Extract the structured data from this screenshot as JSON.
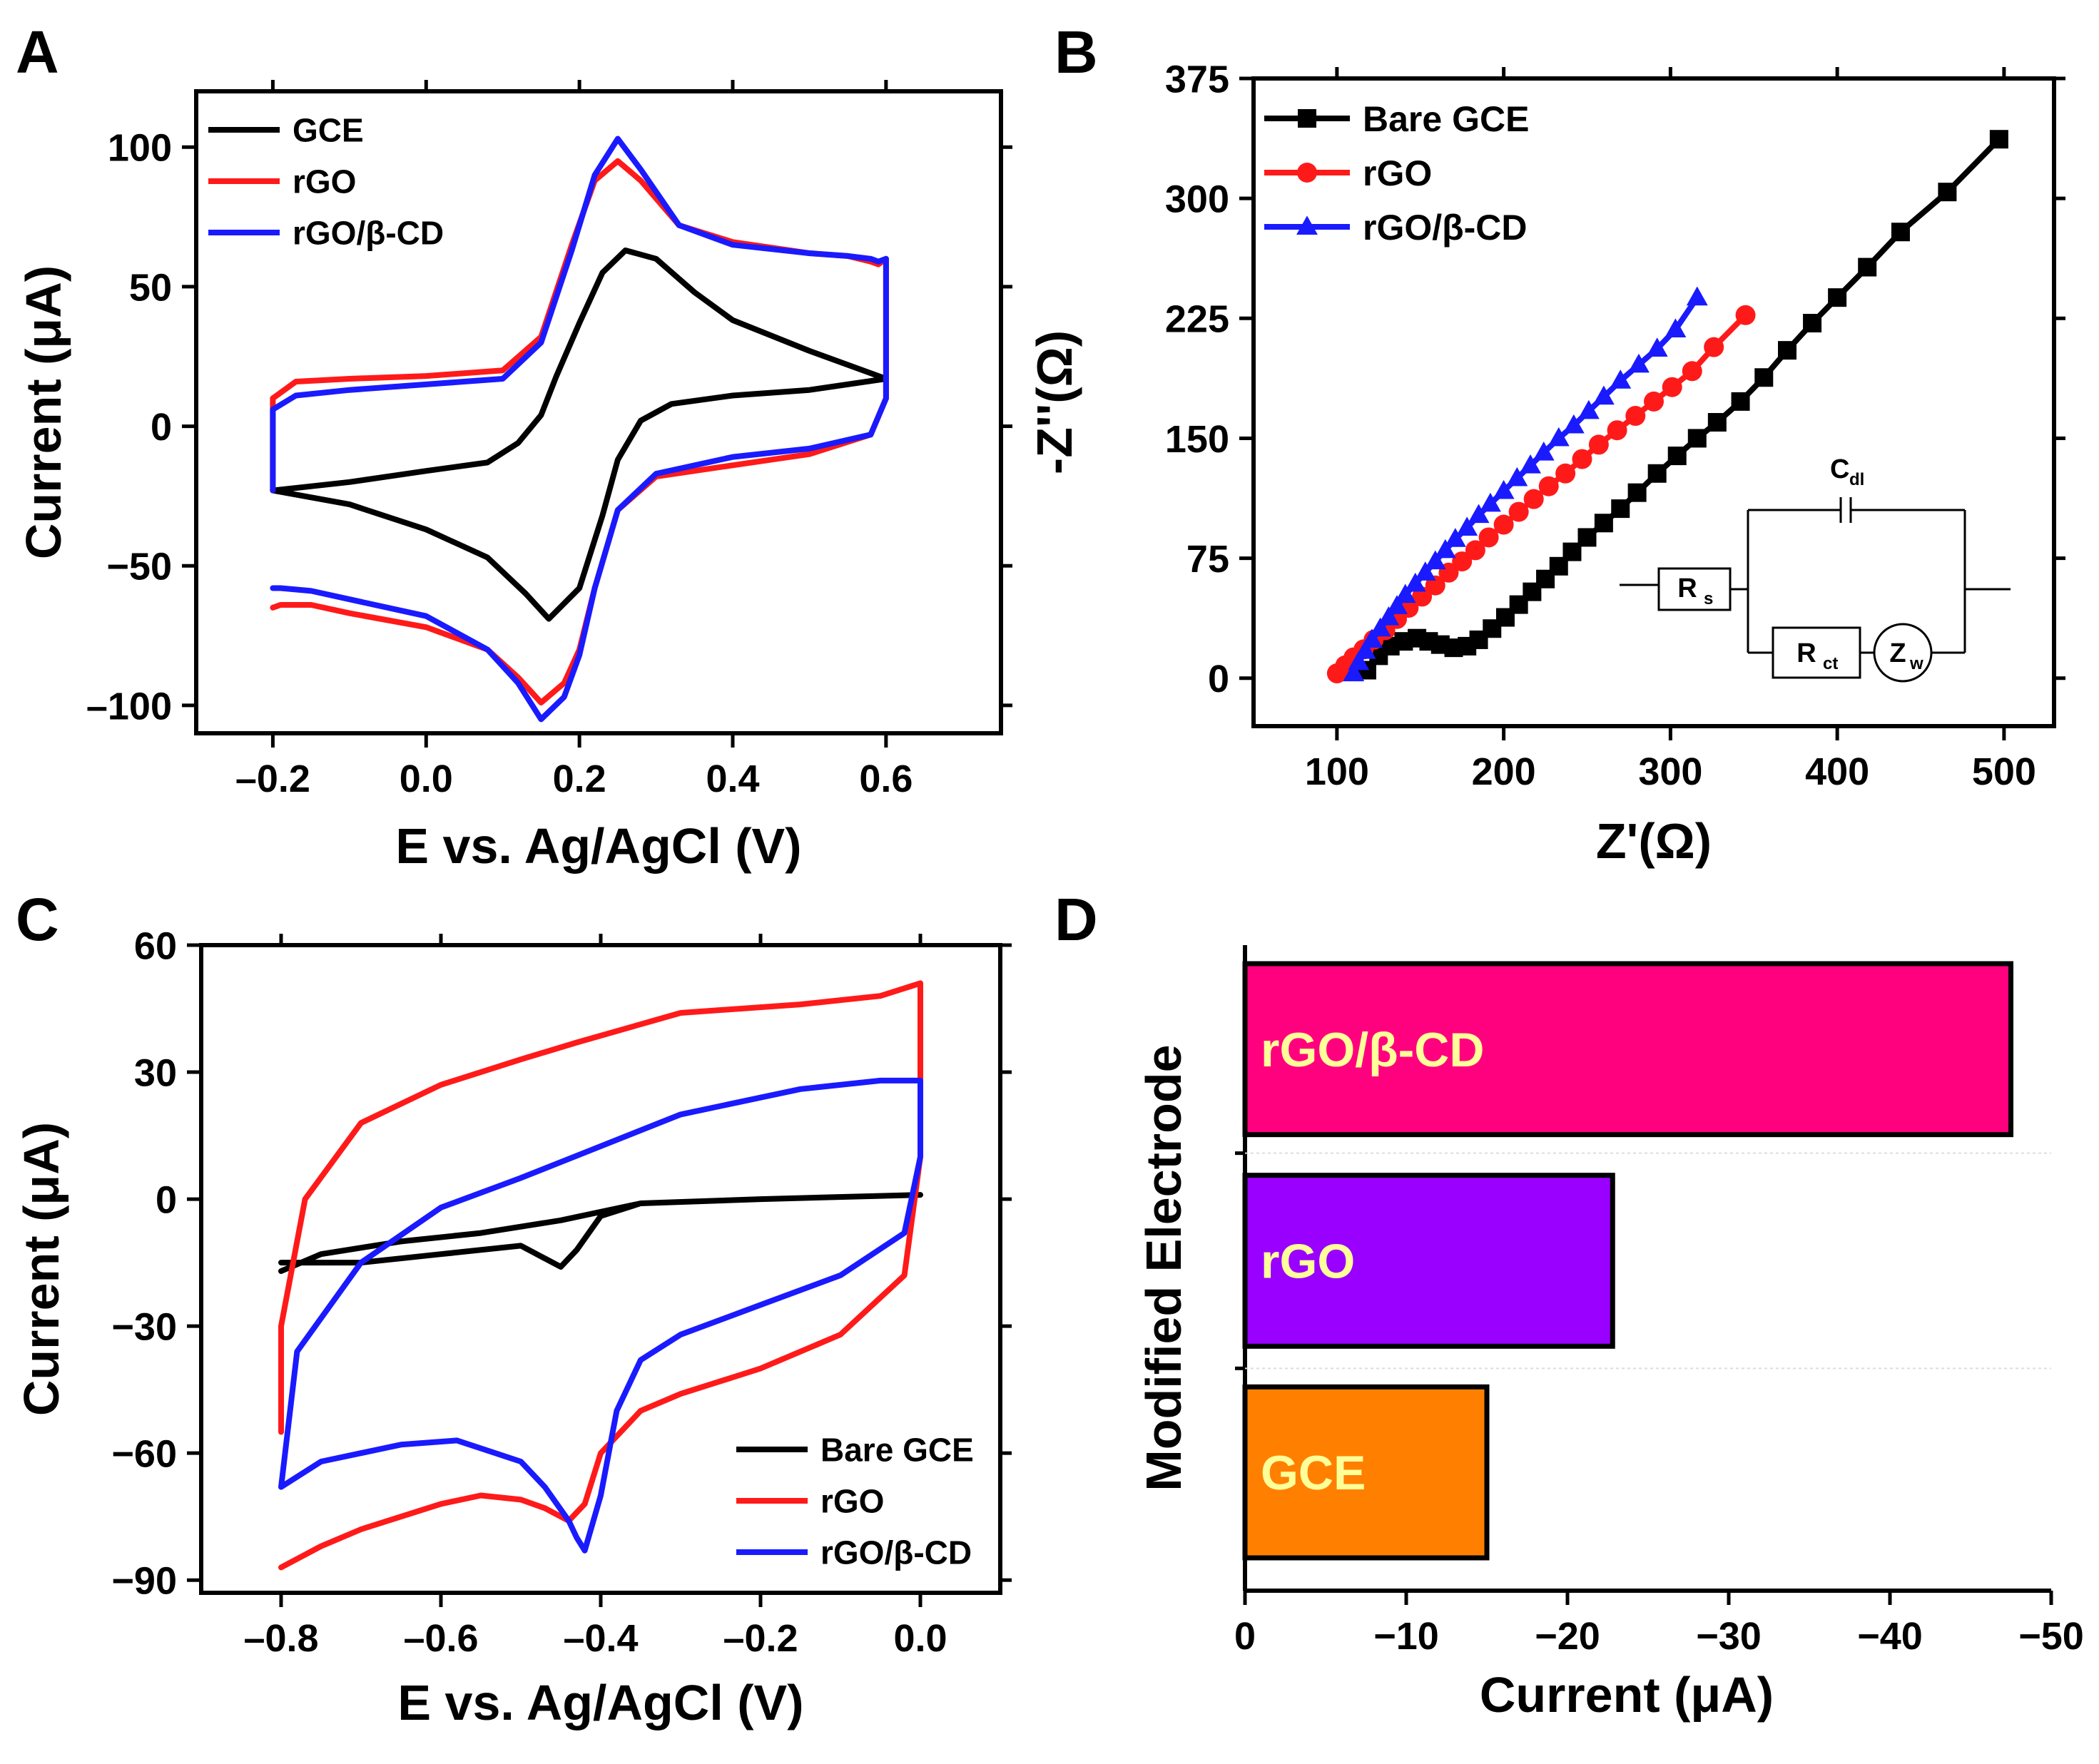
{
  "chart_data": [
    {
      "panel_label": "A",
      "type": "line",
      "title": "",
      "xlabel": "E vs. Ag/AgCl (V)",
      "ylabel": "Current (μA)",
      "xlim": [
        -0.3,
        0.75
      ],
      "ylim": [
        -110,
        120
      ],
      "xticks": [
        -0.2,
        0.0,
        0.2,
        0.4,
        0.6
      ],
      "xtick_labels": [
        "–0.2",
        "0.0",
        "0.2",
        "0.4",
        "0.6"
      ],
      "yticks": [
        -100,
        -50,
        0,
        50,
        100
      ],
      "ytick_labels": [
        "–100",
        "−50",
        "0",
        "50",
        "100"
      ],
      "legend_position": "top-left",
      "series": [
        {
          "name": "GCE",
          "color": "#000000",
          "marker": "none",
          "x": [
            -0.2,
            -0.1,
            0.0,
            0.08,
            0.13,
            0.16,
            0.2,
            0.23,
            0.25,
            0.28,
            0.32,
            0.4,
            0.5,
            0.6,
            0.6,
            0.5,
            0.4,
            0.35,
            0.3,
            0.26,
            0.23,
            0.2,
            0.17,
            0.15,
            0.12,
            0.08,
            0.0,
            -0.1,
            -0.2
          ],
          "y": [
            -23,
            -28,
            -37,
            -47,
            -60,
            -69,
            -58,
            -32,
            -12,
            2,
            8,
            11,
            13,
            17,
            17,
            27,
            38,
            48,
            60,
            63,
            55,
            37,
            18,
            4,
            -6,
            -13,
            -16,
            -20,
            -23
          ]
        },
        {
          "name": "rGO",
          "color": "#ff1a1a",
          "marker": "none",
          "x": [
            -0.2,
            -0.19,
            -0.15,
            -0.1,
            0.0,
            0.08,
            0.12,
            0.15,
            0.18,
            0.2,
            0.22,
            0.25,
            0.3,
            0.4,
            0.5,
            0.58,
            0.6,
            0.6,
            0.59,
            0.58,
            0.55,
            0.5,
            0.4,
            0.33,
            0.28,
            0.25,
            0.22,
            0.19,
            0.15,
            0.1,
            0.0,
            -0.1,
            -0.17,
            -0.2,
            -0.2
          ],
          "y": [
            -65,
            -64,
            -64,
            -67,
            -72,
            -80,
            -90,
            -99,
            -92,
            -80,
            -58,
            -30,
            -18,
            -14,
            -10,
            -3,
            10,
            60,
            58,
            59,
            61,
            62,
            66,
            72,
            88,
            95,
            88,
            65,
            32,
            20,
            18,
            17,
            16,
            10,
            -23
          ]
        },
        {
          "name": "rGO/β-CD",
          "color": "#1a1aff",
          "marker": "none",
          "x": [
            -0.2,
            -0.19,
            -0.15,
            -0.1,
            0.0,
            0.08,
            0.12,
            0.15,
            0.18,
            0.2,
            0.22,
            0.25,
            0.3,
            0.4,
            0.5,
            0.58,
            0.6,
            0.6,
            0.59,
            0.58,
            0.55,
            0.5,
            0.4,
            0.33,
            0.28,
            0.25,
            0.22,
            0.19,
            0.15,
            0.1,
            0.0,
            -0.1,
            -0.17,
            -0.2,
            -0.2
          ],
          "y": [
            -58,
            -58,
            -59,
            -62,
            -68,
            -80,
            -92,
            -105,
            -97,
            -82,
            -58,
            -30,
            -17,
            -11,
            -8,
            -3,
            10,
            60,
            59,
            60,
            61,
            62,
            65,
            72,
            92,
            103,
            90,
            63,
            30,
            17,
            15,
            13,
            11,
            6,
            -23
          ]
        }
      ]
    },
    {
      "panel_label": "B",
      "type": "scatter",
      "title": "",
      "xlabel": "Z'(Ω)",
      "ylabel": "-Z''(Ω)",
      "xlim": [
        50,
        530
      ],
      "ylim": [
        -30,
        375
      ],
      "xticks": [
        100,
        200,
        300,
        400,
        500
      ],
      "xtick_labels": [
        "100",
        "200",
        "300",
        "400",
        "500"
      ],
      "yticks": [
        0,
        75,
        150,
        225,
        300,
        375
      ],
      "ytick_labels": [
        "0",
        "75",
        "150",
        "225",
        "300",
        "375"
      ],
      "legend_position": "top-left",
      "inset_circuit": {
        "rs_label": "R",
        "rs_sub": "s",
        "cdl_label": "C",
        "cdl_sub": "dl",
        "rct_label": "R",
        "rct_sub": "ct",
        "zw_label": "Z",
        "zw_sub": "w"
      },
      "series": [
        {
          "name": "Bare GCE",
          "color": "#000000",
          "marker": "square",
          "x": [
            118,
            125,
            132,
            140,
            148,
            155,
            162,
            170,
            178,
            185,
            193,
            201,
            209,
            217,
            225,
            233,
            241,
            250,
            260,
            270,
            280,
            292,
            304,
            316,
            328,
            342,
            356,
            370,
            385,
            400,
            418,
            438,
            466,
            497
          ],
          "y": [
            5,
            14,
            20,
            23,
            25,
            23,
            21,
            19,
            20,
            24,
            31,
            38,
            46,
            54,
            62,
            70,
            79,
            88,
            97,
            106,
            116,
            128,
            139,
            150,
            160,
            173,
            188,
            205,
            222,
            238,
            257,
            279,
            304,
            337
          ]
        },
        {
          "name": "rGO",
          "color": "#ff1a1a",
          "marker": "circle",
          "x": [
            100,
            105,
            110,
            116,
            122,
            129,
            136,
            143,
            151,
            159,
            167,
            175,
            183,
            191,
            200,
            209,
            218,
            227,
            237,
            247,
            257,
            268,
            279,
            290,
            301,
            313,
            326,
            345
          ],
          "y": [
            3,
            8,
            13,
            18,
            24,
            30,
            37,
            44,
            51,
            58,
            66,
            73,
            80,
            88,
            96,
            104,
            112,
            120,
            128,
            137,
            146,
            155,
            164,
            173,
            182,
            192,
            207,
            227
          ]
        },
        {
          "name": "rGO/β-CD",
          "color": "#1a1aff",
          "marker": "triangle",
          "x": [
            110,
            113,
            117,
            121,
            126,
            131,
            136,
            141,
            147,
            153,
            159,
            165,
            171,
            178,
            185,
            192,
            200,
            208,
            216,
            224,
            233,
            242,
            251,
            260,
            270,
            281,
            292,
            303,
            316
          ],
          "y": [
            3,
            10,
            17,
            24,
            31,
            38,
            45,
            52,
            59,
            66,
            73,
            80,
            87,
            94,
            102,
            109,
            117,
            125,
            133,
            141,
            150,
            158,
            167,
            176,
            186,
            196,
            206,
            218,
            238
          ]
        }
      ]
    },
    {
      "panel_label": "C",
      "type": "line",
      "title": "",
      "xlabel": "E vs. Ag/AgCl (V)",
      "ylabel": "Current (μA)",
      "xlim": [
        -0.9,
        0.1
      ],
      "ylim": [
        -93,
        60
      ],
      "xticks": [
        -0.8,
        -0.6,
        -0.4,
        -0.2,
        0.0
      ],
      "xtick_labels": [
        "–0.8",
        "–0.6",
        "–0.4",
        "–0.2",
        "0.0"
      ],
      "yticks": [
        -90,
        -60,
        -30,
        0,
        30,
        60
      ],
      "ytick_labels": [
        "−90",
        "−60",
        "−30",
        "0",
        "30",
        "60"
      ],
      "legend_position": "bottom-right",
      "series": [
        {
          "name": "Bare GCE",
          "color": "#000000",
          "marker": "none",
          "x": [
            -0.8,
            -0.7,
            -0.6,
            -0.5,
            -0.47,
            -0.45,
            -0.43,
            -0.4,
            -0.35,
            -0.2,
            0.0,
            0.0,
            -0.2,
            -0.35,
            -0.45,
            -0.55,
            -0.65,
            -0.75,
            -0.8
          ],
          "y": [
            -15,
            -15,
            -13,
            -11,
            -14,
            -16,
            -12,
            -4,
            -1,
            0,
            1,
            1,
            0,
            -1,
            -5,
            -8,
            -10,
            -13,
            -17
          ]
        },
        {
          "name": "rGO",
          "color": "#ff1a1a",
          "marker": "none",
          "x": [
            -0.8,
            -0.75,
            -0.7,
            -0.6,
            -0.55,
            -0.5,
            -0.47,
            -0.44,
            -0.42,
            -0.4,
            -0.35,
            -0.3,
            -0.2,
            -0.1,
            -0.02,
            0.0,
            0.0,
            -0.05,
            -0.15,
            -0.3,
            -0.43,
            -0.5,
            -0.6,
            -0.7,
            -0.77,
            -0.8,
            -0.8
          ],
          "y": [
            -87,
            -82,
            -78,
            -72,
            -70,
            -71,
            -73,
            -76,
            -72,
            -60,
            -50,
            -46,
            -40,
            -32,
            -18,
            10,
            51,
            48,
            46,
            44,
            37,
            33,
            27,
            18,
            0,
            -30,
            -55
          ]
        },
        {
          "name": "rGO/β-CD",
          "color": "#1a1aff",
          "marker": "none",
          "x": [
            -0.8,
            -0.75,
            -0.65,
            -0.58,
            -0.5,
            -0.47,
            -0.44,
            -0.43,
            -0.42,
            -0.4,
            -0.38,
            -0.35,
            -0.3,
            -0.2,
            -0.1,
            -0.02,
            0.0,
            0.0,
            -0.05,
            -0.15,
            -0.3,
            -0.42,
            -0.5,
            -0.6,
            -0.7,
            -0.78,
            -0.8
          ],
          "y": [
            -68,
            -62,
            -58,
            -57,
            -62,
            -68,
            -76,
            -80,
            -83,
            -70,
            -50,
            -38,
            -32,
            -25,
            -18,
            -8,
            10,
            28,
            28,
            26,
            20,
            11,
            5,
            -2,
            -15,
            -36,
            -68
          ]
        }
      ]
    },
    {
      "panel_label": "D",
      "type": "bar",
      "orientation": "horizontal",
      "title": "",
      "xlabel": "Current (μA)",
      "ylabel": "Modified Electrode",
      "xlim": [
        0,
        -50
      ],
      "xticks": [
        0,
        -10,
        -20,
        -30,
        -40,
        -50
      ],
      "xtick_labels": [
        "0",
        "−10",
        "−20",
        "−30",
        "−40",
        "−50"
      ],
      "categories": [
        "rGO/β-CD",
        "rGO",
        "GCE"
      ],
      "values": [
        -47.5,
        -22.8,
        -15.0
      ],
      "colors": [
        "#ff007f",
        "#9900ff",
        "#ff8000"
      ],
      "label_color": "#ffff99"
    }
  ]
}
